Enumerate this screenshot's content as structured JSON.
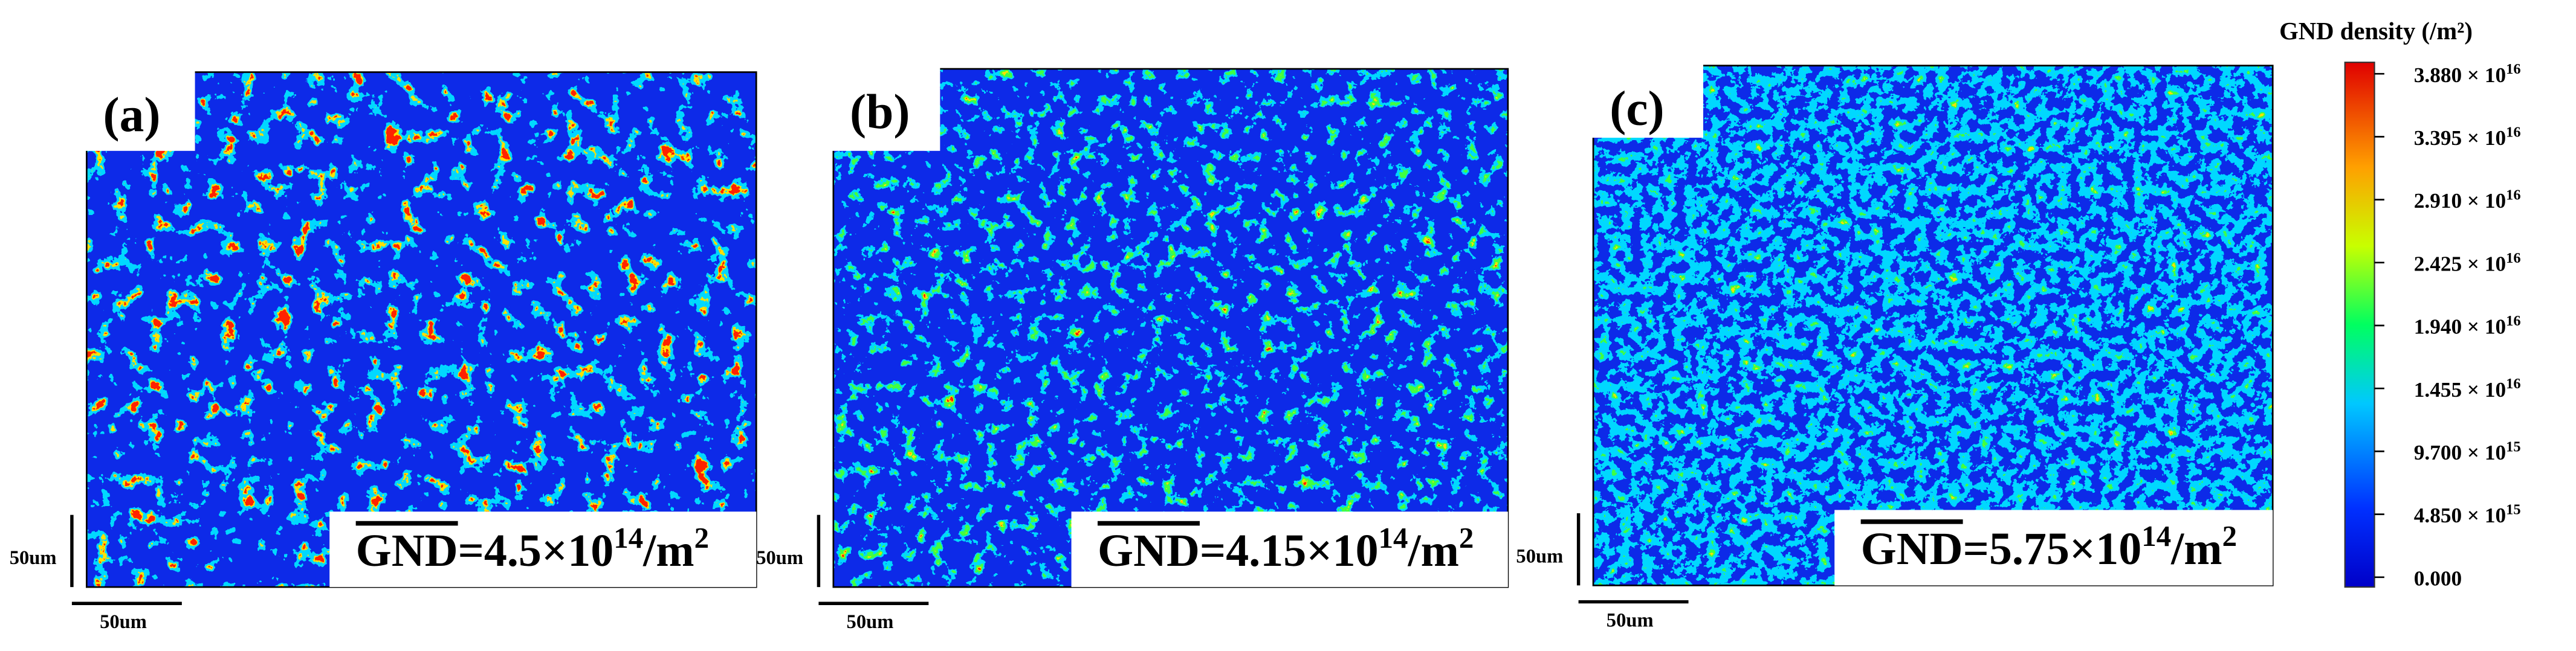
{
  "panels": [
    {
      "label": "(a)",
      "gnd": {
        "symbol": "GND",
        "value": "=4.5×10",
        "exp": "14",
        "unit": "/m",
        "unit_exp": "2"
      },
      "scale_y": "50um",
      "scale_x": "50um"
    },
    {
      "label": "(b)",
      "gnd": {
        "symbol": "GND",
        "value": "=4.15×10",
        "exp": "14",
        "unit": "/m",
        "unit_exp": "2"
      },
      "scale_y": "50um",
      "scale_x": "50um"
    },
    {
      "label": "(c)",
      "gnd": {
        "symbol": "GND",
        "value": "=5.75×10",
        "exp": "14",
        "unit": "/m",
        "unit_exp": "2"
      },
      "scale_y": "50um",
      "scale_x": "50um"
    }
  ],
  "colorbar": {
    "title": "GND density (/m²)",
    "ticks": [
      {
        "base": "3.880 × 10",
        "sup": "16"
      },
      {
        "base": "3.395 × 10",
        "sup": "16"
      },
      {
        "base": "2.910 × 10",
        "sup": "16"
      },
      {
        "base": "2.425 × 10",
        "sup": "16"
      },
      {
        "base": "1.940 × 10",
        "sup": "16"
      },
      {
        "base": "1.455 × 10",
        "sup": "16"
      },
      {
        "base": "9.700 × 10",
        "sup": "15"
      },
      {
        "base": "4.850 × 10",
        "sup": "15"
      },
      {
        "base": "0.000"
      }
    ]
  }
}
